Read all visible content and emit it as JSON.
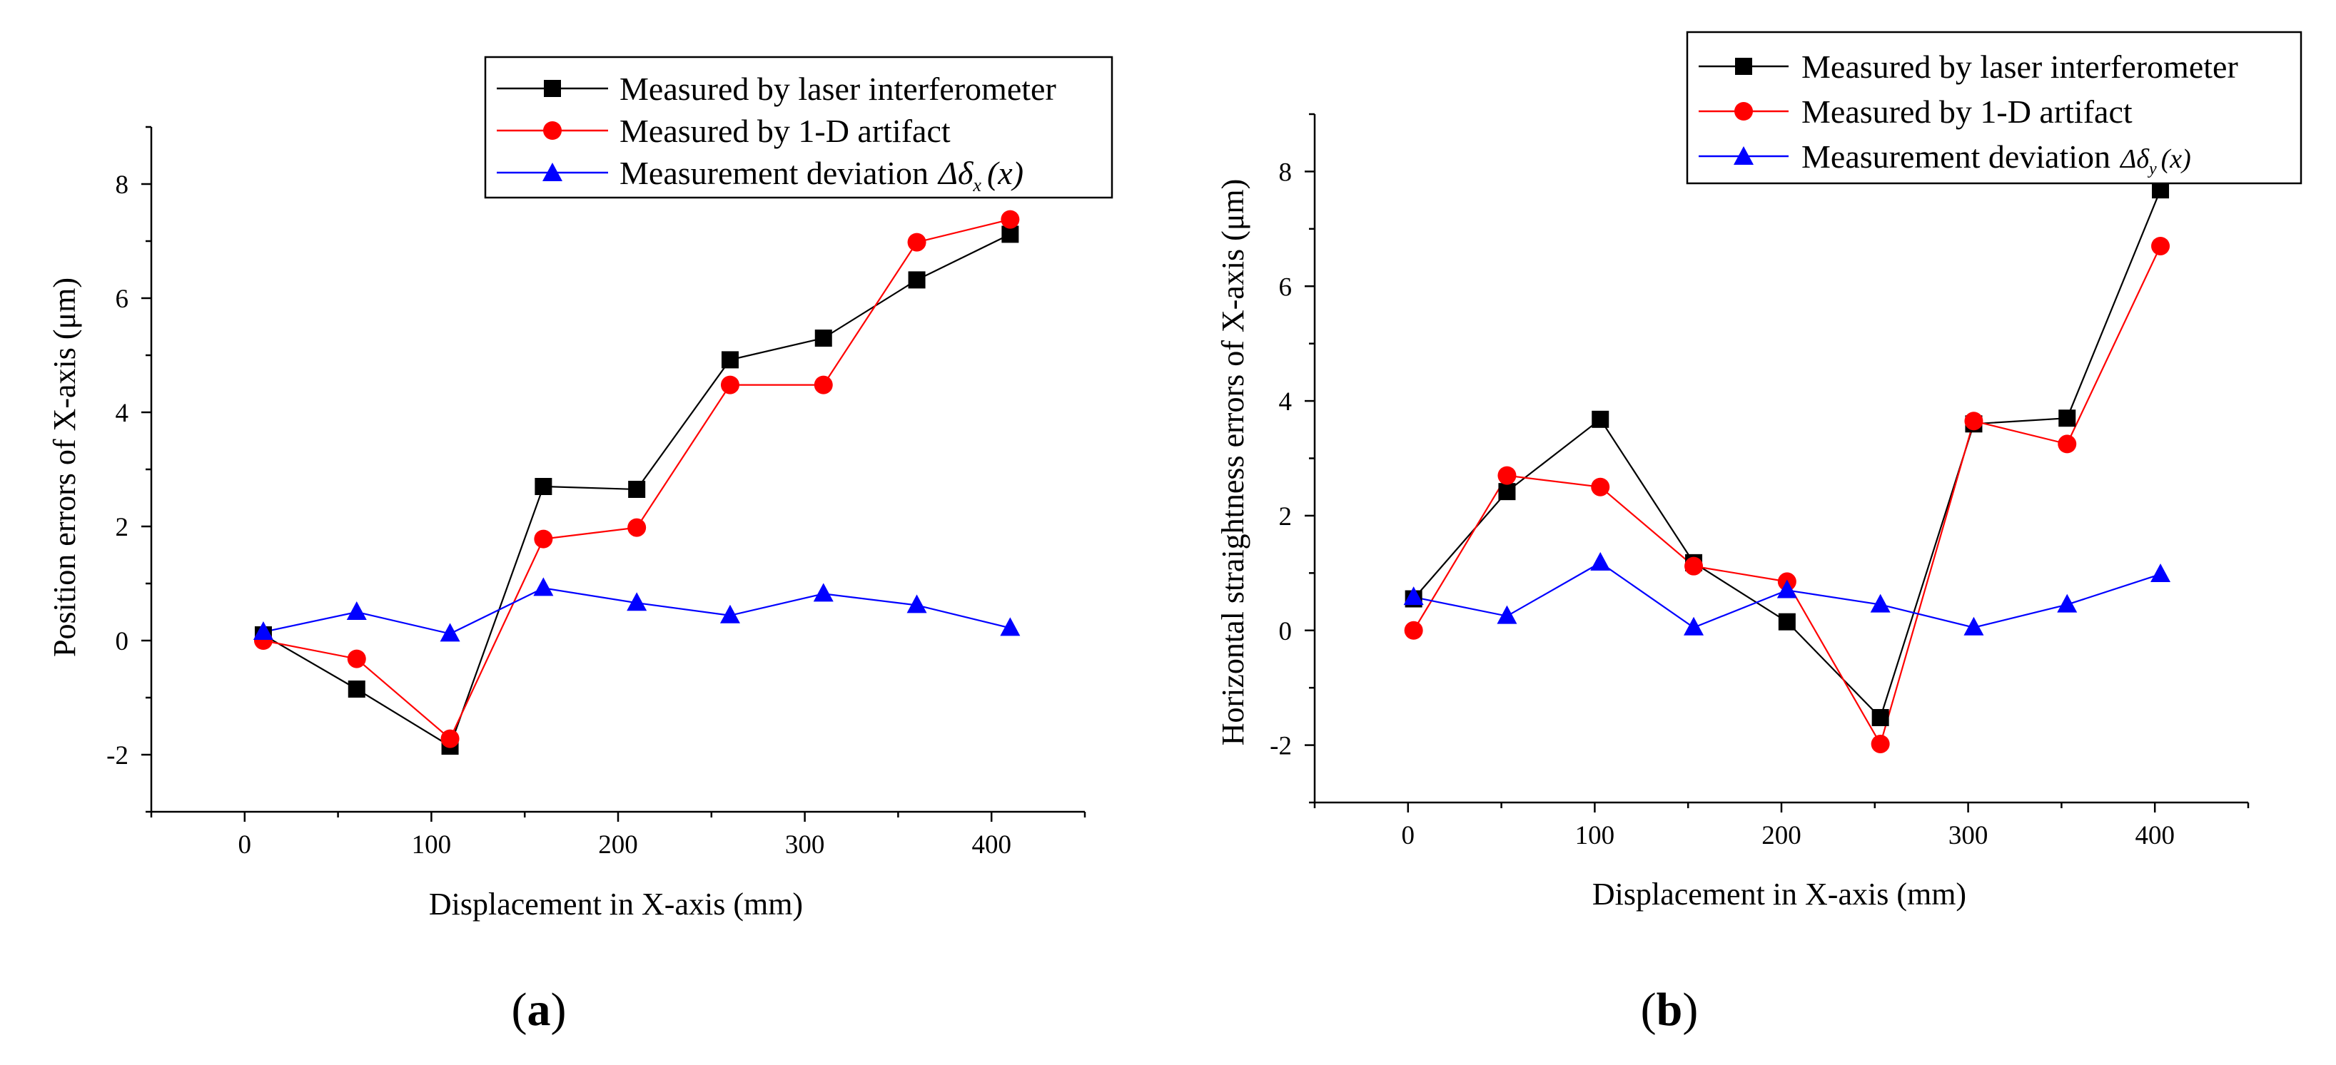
{
  "figure": {
    "panel_labels": [
      {
        "open": "(",
        "letter": "a",
        "close": ")"
      },
      {
        "open": "(",
        "letter": "b",
        "close": ")"
      }
    ],
    "colors": {
      "series_1": "#000000",
      "series_2": "#ff0000",
      "series_3": "#0000ff"
    }
  },
  "chart_data": [
    {
      "type": "line",
      "panel": "a",
      "title": "",
      "xlabel": "Displacement in X-axis (mm)",
      "ylabel": "Position errors of X-axis (μm)",
      "xlim": [
        -50,
        450
      ],
      "ylim": [
        -3,
        9
      ],
      "xticks": [
        0,
        100,
        200,
        300,
        400
      ],
      "yticks": [
        -2,
        0,
        2,
        4,
        6,
        8
      ],
      "x": [
        10,
        60,
        110,
        160,
        210,
        260,
        310,
        360,
        410
      ],
      "legend_position": "top-right",
      "series": [
        {
          "name": "Measured by laser interferometer",
          "marker": "square",
          "color": "#000000",
          "values": [
            0.1,
            -0.85,
            -1.85,
            2.7,
            2.65,
            4.92,
            5.3,
            6.32,
            7.12
          ]
        },
        {
          "name": "Measured by 1-D artifact",
          "marker": "circle",
          "color": "#ff0000",
          "values": [
            0.0,
            -0.32,
            -1.72,
            1.78,
            1.98,
            4.48,
            4.48,
            6.98,
            7.38
          ]
        },
        {
          "name": "Measurement deviation",
          "marker": "triangle",
          "color": "#0000ff",
          "symbol": {
            "delta": "Δδ",
            "sub": "x",
            "arg": "(x)"
          },
          "values": [
            0.15,
            0.5,
            0.12,
            0.92,
            0.66,
            0.44,
            0.82,
            0.62,
            0.22
          ]
        }
      ]
    },
    {
      "type": "line",
      "panel": "b",
      "title": "",
      "xlabel": "Displacement in X-axis (mm)",
      "ylabel": "Horizontal straightness errors of X-axis (μm)",
      "xlim": [
        -50,
        450
      ],
      "ylim": [
        -3,
        9
      ],
      "xticks": [
        0,
        100,
        200,
        300,
        400
      ],
      "yticks": [
        -2,
        0,
        2,
        4,
        6,
        8
      ],
      "x": [
        3,
        53,
        103,
        153,
        203,
        253,
        303,
        353,
        403
      ],
      "legend_position": "top-right",
      "series": [
        {
          "name": "Measured by laser interferometer",
          "marker": "square",
          "color": "#000000",
          "values": [
            0.55,
            2.42,
            3.68,
            1.18,
            0.15,
            -1.52,
            3.6,
            3.7,
            7.68
          ]
        },
        {
          "name": "Measured by 1-D artifact",
          "marker": "circle",
          "color": "#ff0000",
          "values": [
            0.0,
            2.7,
            2.5,
            1.12,
            0.85,
            -1.98,
            3.65,
            3.25,
            6.7
          ]
        },
        {
          "name": "Measurement deviation",
          "marker": "triangle",
          "color": "#0000ff",
          "symbol": {
            "delta": "Δδ",
            "sub": "y",
            "arg": "(x)"
          },
          "values": [
            0.58,
            0.25,
            1.18,
            0.05,
            0.7,
            0.45,
            0.05,
            0.45,
            0.98
          ]
        }
      ]
    }
  ]
}
